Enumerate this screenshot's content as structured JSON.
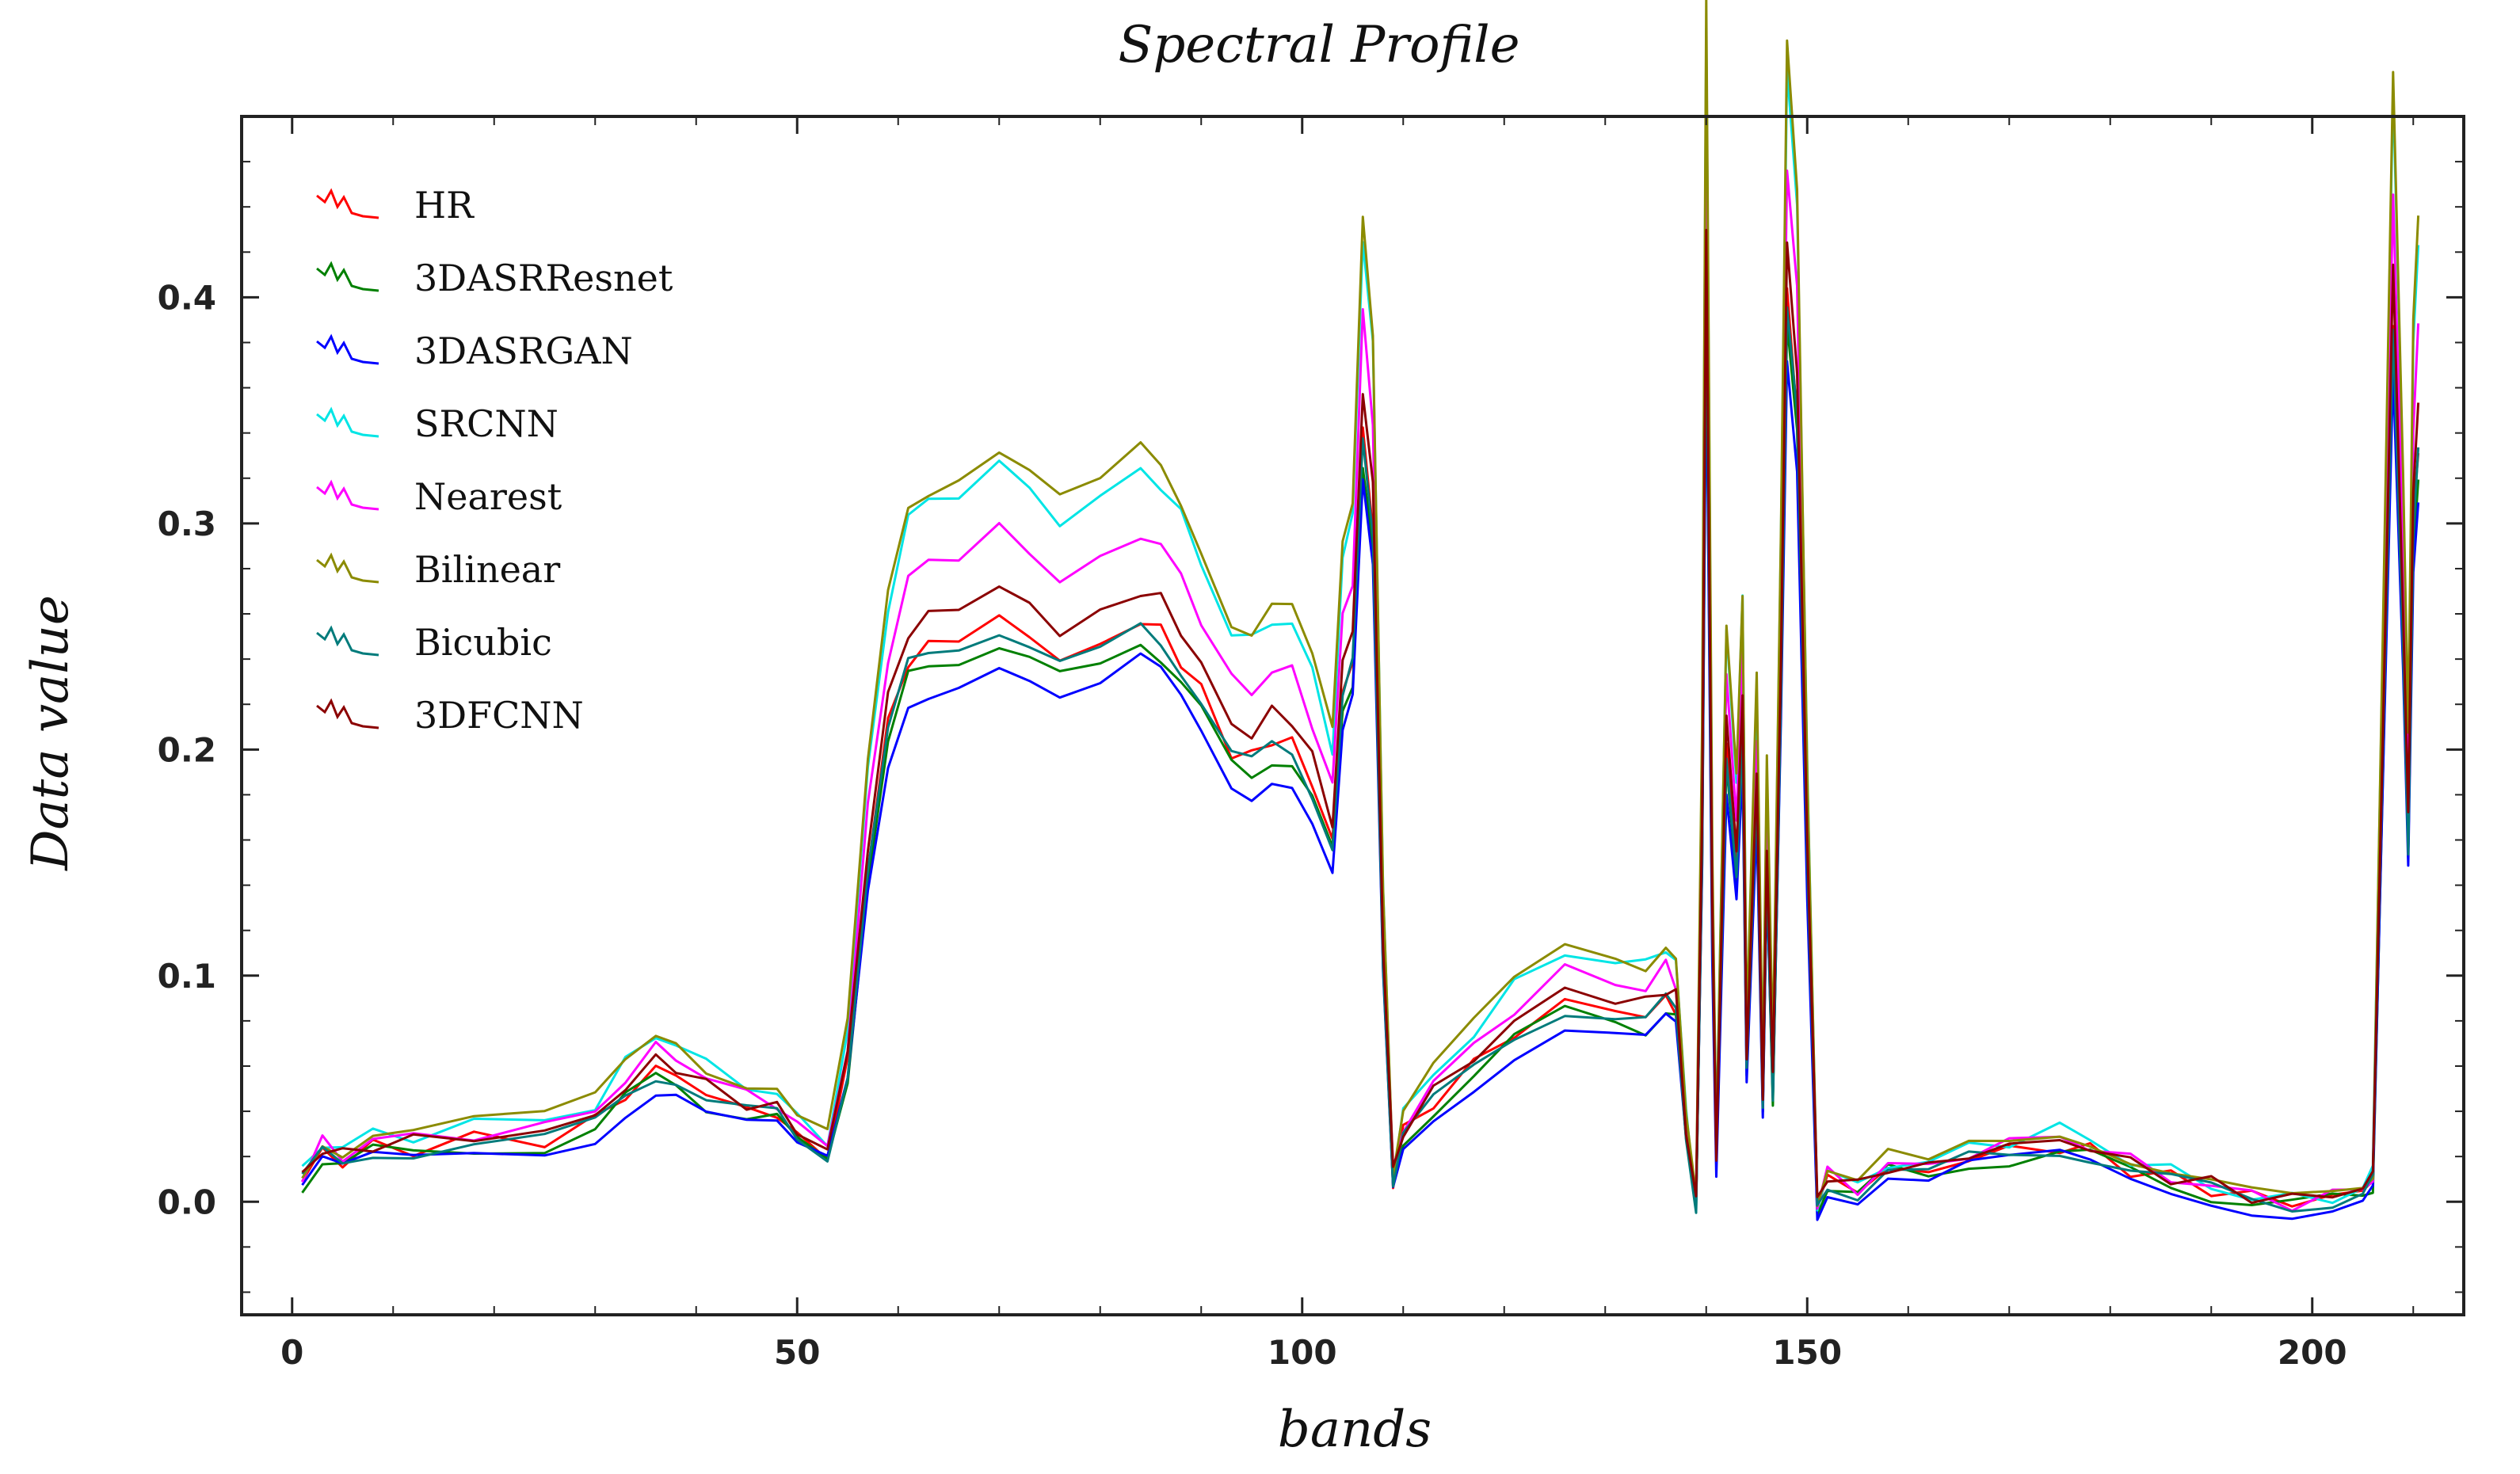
{
  "chart_data": {
    "type": "line",
    "title": "Spectral Profile",
    "xlabel": "bands",
    "ylabel": "Data value",
    "xlim": [
      -5,
      215
    ],
    "ylim": [
      -0.05,
      0.48
    ],
    "xticks": [
      0,
      50,
      100,
      150,
      200
    ],
    "xtick_labels": [
      "0",
      "50",
      "100",
      "150",
      "200"
    ],
    "yticks": [
      0.0,
      0.1,
      0.2,
      0.3,
      0.4
    ],
    "ytick_labels": [
      "0.0",
      "0.1",
      "0.2",
      "0.3",
      "0.4"
    ],
    "grid": false,
    "legend_position": "top-left",
    "base_profile": [
      [
        1,
        0.01
      ],
      [
        3,
        0.022
      ],
      [
        5,
        0.018
      ],
      [
        8,
        0.024
      ],
      [
        12,
        0.024
      ],
      [
        18,
        0.027
      ],
      [
        25,
        0.028
      ],
      [
        30,
        0.035
      ],
      [
        33,
        0.048
      ],
      [
        36,
        0.058
      ],
      [
        38,
        0.057
      ],
      [
        41,
        0.047
      ],
      [
        45,
        0.041
      ],
      [
        48,
        0.039
      ],
      [
        50,
        0.028
      ],
      [
        53,
        0.022
      ],
      [
        55,
        0.06
      ],
      [
        57,
        0.15
      ],
      [
        59,
        0.21
      ],
      [
        61,
        0.24
      ],
      [
        63,
        0.245
      ],
      [
        66,
        0.25
      ],
      [
        70,
        0.258
      ],
      [
        73,
        0.25
      ],
      [
        76,
        0.24
      ],
      [
        80,
        0.245
      ],
      [
        84,
        0.258
      ],
      [
        86,
        0.252
      ],
      [
        88,
        0.24
      ],
      [
        90,
        0.225
      ],
      [
        93,
        0.2
      ],
      [
        95,
        0.196
      ],
      [
        97,
        0.205
      ],
      [
        99,
        0.203
      ],
      [
        101,
        0.185
      ],
      [
        103,
        0.16
      ],
      [
        104,
        0.225
      ],
      [
        105,
        0.24
      ],
      [
        106,
        0.34
      ],
      [
        107,
        0.3
      ],
      [
        108,
        0.11
      ],
      [
        109,
        0.01
      ],
      [
        110,
        0.03
      ],
      [
        113,
        0.045
      ],
      [
        117,
        0.06
      ],
      [
        121,
        0.075
      ],
      [
        126,
        0.088
      ],
      [
        131,
        0.085
      ],
      [
        134,
        0.082
      ],
      [
        136,
        0.09
      ],
      [
        137,
        0.085
      ],
      [
        138,
        0.03
      ],
      [
        139,
        0.0
      ],
      [
        139.6,
        0.16
      ],
      [
        140,
        0.41
      ],
      [
        140.6,
        0.12
      ],
      [
        141,
        0.02
      ],
      [
        142,
        0.2
      ],
      [
        143,
        0.15
      ],
      [
        143.6,
        0.21
      ],
      [
        144,
        0.06
      ],
      [
        145,
        0.18
      ],
      [
        145.6,
        0.04
      ],
      [
        146,
        0.15
      ],
      [
        146.6,
        0.05
      ],
      [
        147.4,
        0.23
      ],
      [
        148,
        0.4
      ],
      [
        149,
        0.35
      ],
      [
        150,
        0.15
      ],
      [
        151,
        0.0
      ],
      [
        152,
        0.01
      ],
      [
        155,
        0.005
      ],
      [
        158,
        0.015
      ],
      [
        162,
        0.012
      ],
      [
        166,
        0.02
      ],
      [
        170,
        0.022
      ],
      [
        175,
        0.025
      ],
      [
        178,
        0.022
      ],
      [
        182,
        0.015
      ],
      [
        186,
        0.01
      ],
      [
        190,
        0.006
      ],
      [
        194,
        0.002
      ],
      [
        198,
        0.0
      ],
      [
        202,
        0.002
      ],
      [
        205,
        0.005
      ],
      [
        206,
        0.01
      ],
      [
        207,
        0.2
      ],
      [
        208,
        0.39
      ],
      [
        209,
        0.25
      ],
      [
        209.5,
        0.16
      ],
      [
        210,
        0.3
      ],
      [
        210.5,
        0.335
      ]
    ],
    "series": [
      {
        "name": "HR",
        "color": "#ff0000",
        "scale": 1.0,
        "offset": 0.0
      },
      {
        "name": "3DASRResnet",
        "color": "#008000",
        "scale": 0.97,
        "offset": -0.002
      },
      {
        "name": "3DASRGAN",
        "color": "#0000ff",
        "scale": 0.94,
        "offset": -0.004
      },
      {
        "name": "SRCNN",
        "color": "#00e5e5",
        "scale": 1.26,
        "offset": 0.0
      },
      {
        "name": "Nearest",
        "color": "#ff00ff",
        "scale": 1.15,
        "offset": 0.0
      },
      {
        "name": "Bilinear",
        "color": "#8b8b00",
        "scale": 1.29,
        "offset": 0.0
      },
      {
        "name": "Bicubic",
        "color": "#007b7b",
        "scale": 0.99,
        "offset": -0.001
      },
      {
        "name": "3DFCNN",
        "color": "#8b0000",
        "scale": 1.05,
        "offset": 0.001
      }
    ]
  }
}
